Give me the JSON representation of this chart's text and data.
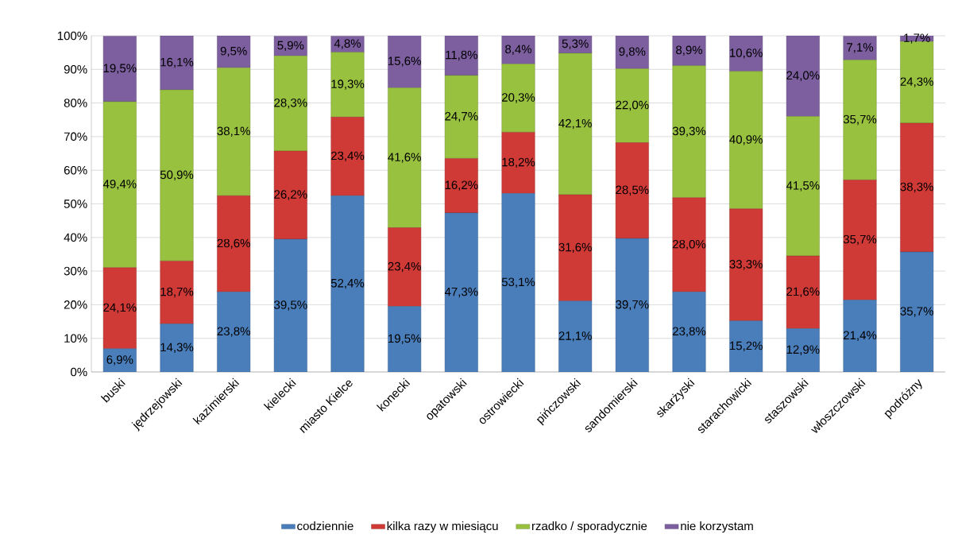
{
  "chart_data": {
    "type": "bar",
    "stacked": true,
    "grid": "y",
    "legend": "bottom",
    "categories": [
      "buski",
      "jędrzejowski",
      "kazimierski",
      "kielecki",
      "miasto Kielce",
      "konecki",
      "opatowski",
      "ostrowiecki",
      "pińczowski",
      "sandomierski",
      "skarżyski",
      "starachowicki",
      "staszowski",
      "włoszczowski",
      "podróżny"
    ],
    "ylim": [
      0,
      100
    ],
    "yticks": [
      {
        "value": 0,
        "label": "0%"
      },
      {
        "value": 10,
        "label": "10%"
      },
      {
        "value": 20,
        "label": "20%"
      },
      {
        "value": 30,
        "label": "30%"
      },
      {
        "value": 40,
        "label": "40%"
      },
      {
        "value": 50,
        "label": "50%"
      },
      {
        "value": 60,
        "label": "60%"
      },
      {
        "value": 70,
        "label": "70%"
      },
      {
        "value": 80,
        "label": "80%"
      },
      {
        "value": 90,
        "label": "90%"
      },
      {
        "value": 100,
        "label": "100%"
      }
    ],
    "series": [
      {
        "name": "codziennie",
        "color": "#4a7ebb",
        "values": [
          6.9,
          14.3,
          23.8,
          39.5,
          52.4,
          19.5,
          47.3,
          53.1,
          21.1,
          39.7,
          23.8,
          15.2,
          12.9,
          21.4,
          35.7
        ],
        "value_labels": [
          "6,9%",
          "14,3%",
          "23,8%",
          "39,5%",
          "52,4%",
          "19,5%",
          "47,3%",
          "53,1%",
          "21,1%",
          "39,7%",
          "23,8%",
          "15,2%",
          "12,9%",
          "21,4%",
          "35,7%"
        ]
      },
      {
        "name": "kilka razy w miesiącu",
        "color": "#cf3a36",
        "values": [
          24.1,
          18.7,
          28.6,
          26.2,
          23.4,
          23.4,
          16.2,
          18.2,
          31.6,
          28.5,
          28.0,
          33.3,
          21.6,
          35.7,
          38.3
        ],
        "value_labels": [
          "24,1%",
          "18,7%",
          "28,6%",
          "26,2%",
          "23,4%",
          "23,4%",
          "16,2%",
          "18,2%",
          "31,6%",
          "28,5%",
          "28,0%",
          "33,3%",
          "21,6%",
          "35,7%",
          "38,3%"
        ]
      },
      {
        "name": "rzadko / sporadycznie",
        "color": "#98c140",
        "values": [
          49.4,
          50.9,
          38.1,
          28.3,
          19.3,
          41.6,
          24.7,
          20.3,
          42.1,
          22.0,
          39.3,
          40.9,
          41.5,
          35.7,
          24.3
        ],
        "value_labels": [
          "49,4%",
          "50,9%",
          "38,1%",
          "28,3%",
          "19,3%",
          "41,6%",
          "24,7%",
          "20,3%",
          "42,1%",
          "22,0%",
          "39,3%",
          "40,9%",
          "41,5%",
          "35,7%",
          "24,3%"
        ]
      },
      {
        "name": "nie korzystam",
        "color": "#7d5fa0",
        "values": [
          19.5,
          16.1,
          9.5,
          5.9,
          4.8,
          15.6,
          11.8,
          8.4,
          5.3,
          9.8,
          8.9,
          10.6,
          24.0,
          7.1,
          1.7
        ],
        "value_labels": [
          "19,5%",
          "16,1%",
          "9,5%",
          "5,9%",
          "4,8%",
          "15,6%",
          "11,8%",
          "8,4%",
          "5,3%",
          "9,8%",
          "8,9%",
          "10,6%",
          "24,0%",
          "7,1%",
          "1,7%"
        ]
      }
    ]
  }
}
